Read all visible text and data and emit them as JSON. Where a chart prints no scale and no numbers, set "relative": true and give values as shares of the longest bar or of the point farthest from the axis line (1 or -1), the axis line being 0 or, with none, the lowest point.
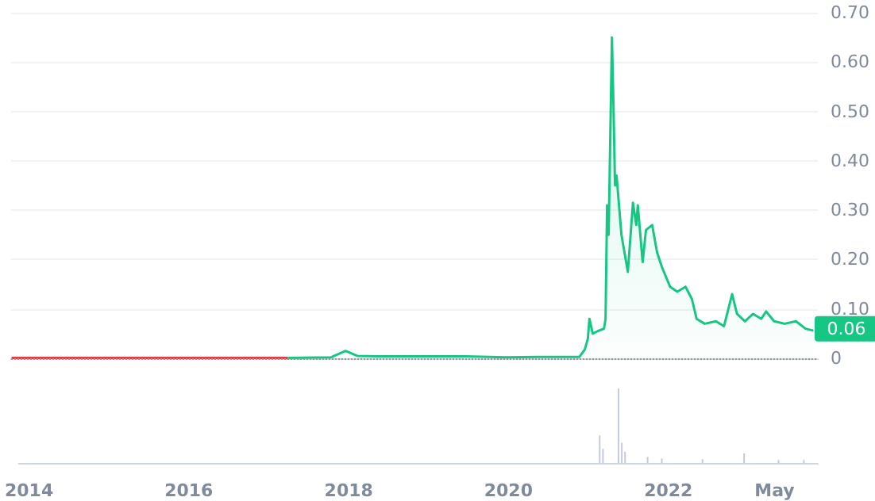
{
  "chart_data": [
    {
      "type": "area",
      "series": [
        {
          "type": "line",
          "color": "#ea3943",
          "x": [
            "2013-11-17",
            "2014-06-01",
            "2015-06-01",
            "2016-06-01",
            "2017-04-20"
          ],
          "values": [
            0.001,
            0.001,
            0.001,
            0.001,
            0.001
          ]
        },
        {
          "color": "#16c784",
          "x": [
            "2017-04-20",
            "2017-11-01",
            "2018-01-07",
            "2018-03-01",
            "2018-06-01",
            "2019-07-01",
            "2020-01-01",
            "2020-06-01",
            "2020-12-01",
            "2020-12-25",
            "2021-01-08",
            "2021-01-15",
            "2021-01-30",
            "2021-02-21",
            "2021-03-22",
            "2021-03-29",
            "2021-04-05",
            "2021-04-12",
            "2021-04-27",
            "2021-05-04",
            "2021-05-11",
            "2021-05-18",
            "2021-06-09",
            "2021-07-08",
            "2021-07-31",
            "2021-08-15",
            "2021-08-22",
            "2021-09-13",
            "2021-09-28",
            "2021-10-26",
            "2021-11-17",
            "2021-12-09",
            "2022-01-15",
            "2022-02-17",
            "2022-03-26",
            "2022-04-24",
            "2022-05-15",
            "2022-06-21",
            "2022-08-11",
            "2022-09-16",
            "2022-10-23",
            "2022-11-14",
            "2022-12-20",
            "2023-01-26",
            "2023-03-04",
            "2023-03-26",
            "2023-05-01",
            "2023-06-18",
            "2023-08-08",
            "2023-09-20",
            "2023-10-26"
          ],
          "values": [
            0.001,
            0.002,
            0.015,
            0.005,
            0.004,
            0.004,
            0.002,
            0.003,
            0.003,
            0.018,
            0.04,
            0.08,
            0.05,
            0.055,
            0.06,
            0.08,
            0.31,
            0.25,
            0.65,
            0.51,
            0.35,
            0.37,
            0.25,
            0.175,
            0.315,
            0.27,
            0.31,
            0.195,
            0.26,
            0.27,
            0.215,
            0.185,
            0.145,
            0.135,
            0.145,
            0.12,
            0.08,
            0.07,
            0.075,
            0.065,
            0.13,
            0.09,
            0.075,
            0.09,
            0.08,
            0.095,
            0.075,
            0.07,
            0.075,
            0.06,
            0.056
          ]
        }
      ],
      "xlim": [
        "2013-11-15",
        "2023-11-15"
      ],
      "ylim": [
        0,
        0.7
      ],
      "yticks": [
        0,
        {
          "value": 0.1,
          "label": "0.10"
        },
        {
          "value": 0.2,
          "label": "0.20"
        },
        {
          "value": 0.3,
          "label": "0.30"
        },
        {
          "value": 0.4,
          "label": "0.40"
        },
        {
          "value": 0.5,
          "label": "0.50"
        },
        {
          "value": 0.6,
          "label": "0.60"
        },
        {
          "value": 0.7,
          "label": "0.70"
        }
      ],
      "grid": "y",
      "tick_labels": "y",
      "marker": "none",
      "ref_lines": [
        {
          "axis": "y",
          "value": 0,
          "line_style": "dotted",
          "color": "#9a9a9a"
        }
      ],
      "annotations": [
        {
          "text": "0.06",
          "x": "2023-10-26",
          "y": 0.06
        }
      ]
    },
    {
      "type": "bar",
      "relative": true,
      "color": "#c3cbe0",
      "x": [
        "2021-02-21",
        "2021-03-08",
        "2021-05-18",
        "2021-06-02",
        "2021-06-17",
        "2021-09-28",
        "2021-12-02",
        "2022-06-06",
        "2022-12-13",
        "2023-05-19",
        "2023-09-12"
      ],
      "values": [
        0.37,
        0.19,
        1,
        0.27,
        0.15,
        0.08,
        0.06,
        0.05,
        0.13,
        0.04,
        0.04
      ],
      "xlim": [
        "2013-11-15",
        "2023-11-15"
      ],
      "xticks": [
        {
          "value": "2014",
          "label": "2014"
        },
        {
          "value": "2016",
          "label": "2016"
        },
        {
          "value": "2018",
          "label": "2018"
        },
        {
          "value": "2020",
          "label": "2020"
        },
        {
          "value": "2022",
          "label": "2022"
        },
        {
          "value": "2023-05",
          "label": "May"
        }
      ],
      "tick_labels": "x"
    }
  ]
}
